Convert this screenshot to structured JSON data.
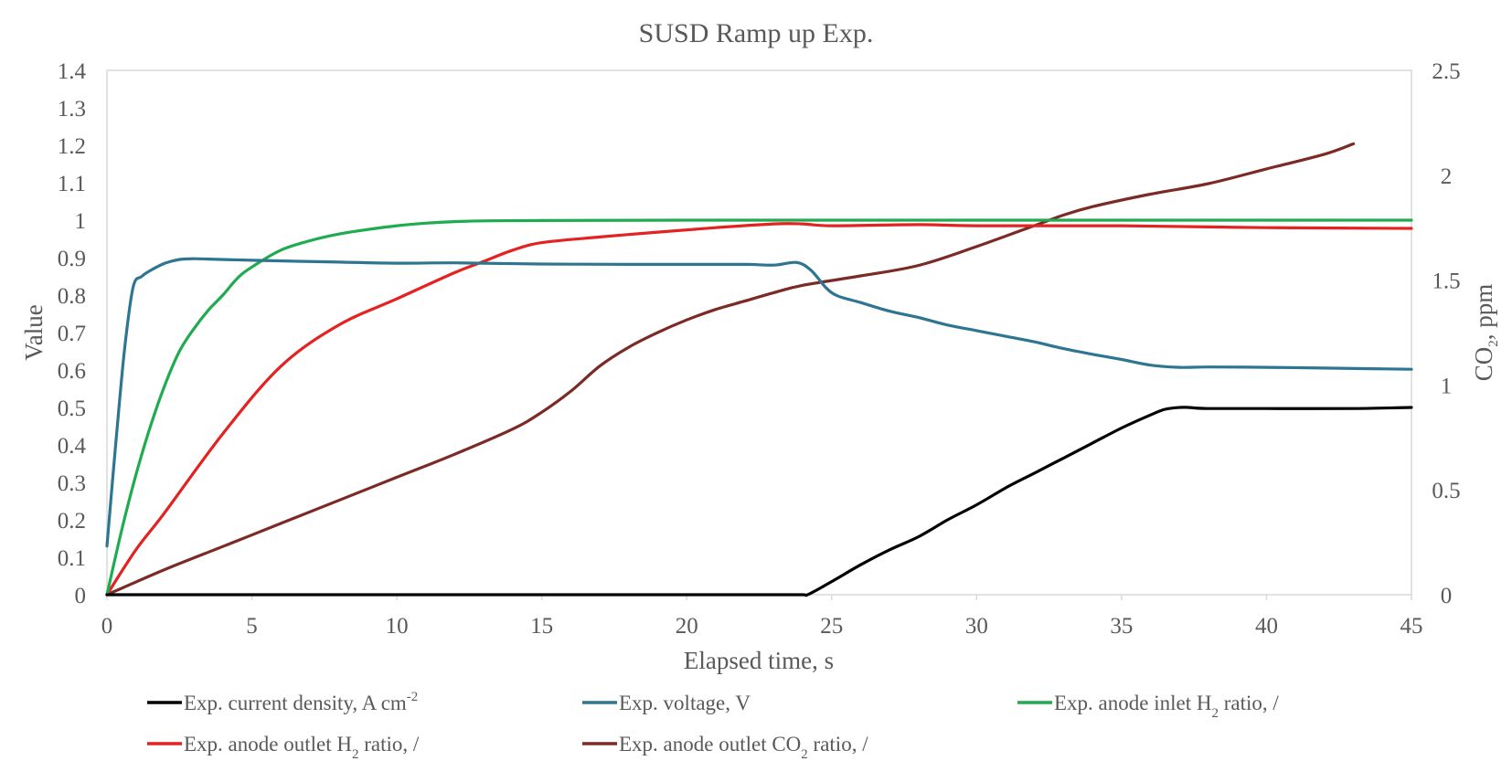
{
  "chart_data": {
    "type": "line",
    "title": "SUSD Ramp up Exp.",
    "xlabel": "Elapsed time, s",
    "ylabel": "Value",
    "y2label_main": "CO",
    "y2label_sub": "2",
    "y2label_rest": ", ppm",
    "xlim": [
      0,
      45
    ],
    "ylim": [
      0,
      1.4
    ],
    "y2lim": [
      0,
      2.5
    ],
    "x_ticks": [
      "0",
      "5",
      "10",
      "15",
      "20",
      "25",
      "30",
      "35",
      "40",
      "45"
    ],
    "y_ticks": [
      "0",
      "0.1",
      "0.2",
      "0.3",
      "0.4",
      "0.5",
      "0.6",
      "0.7",
      "0.8",
      "0.9",
      "1",
      "1.1",
      "1.2",
      "1.3",
      "1.4"
    ],
    "y2_ticks": [
      "0",
      "0.5",
      "1",
      "1.5",
      "2",
      "2.5"
    ],
    "grid": false,
    "legend_position": "bottom",
    "series": [
      {
        "name": "Exp. current density, A cm",
        "name_sup": "-2",
        "name_sub": "",
        "name_rest": "",
        "color": "#000000",
        "axis": "left",
        "x": [
          0,
          5,
          10,
          15,
          20,
          23,
          24,
          24.2,
          25,
          26,
          27,
          28,
          29,
          30,
          31,
          32,
          33,
          34,
          35,
          36,
          36.5,
          37,
          37.3,
          38,
          40,
          43,
          45
        ],
        "y": [
          0,
          0,
          0,
          0,
          0,
          0,
          0,
          0.001,
          0.035,
          0.08,
          0.12,
          0.155,
          0.2,
          0.24,
          0.285,
          0.325,
          0.365,
          0.405,
          0.445,
          0.48,
          0.495,
          0.5,
          0.5,
          0.497,
          0.497,
          0.497,
          0.5
        ]
      },
      {
        "name": "Exp. voltage, V",
        "name_sup": "",
        "name_sub": "",
        "name_rest": "",
        "color": "#2e7592",
        "axis": "left",
        "x": [
          0,
          0.3,
          0.6,
          0.9,
          1.2,
          1.6,
          2.0,
          2.5,
          3.0,
          3.5,
          5,
          8,
          10,
          12,
          15,
          18,
          20,
          22,
          23,
          23.8,
          24.3,
          24.8,
          25.2,
          26,
          27,
          28,
          29,
          30,
          31,
          32,
          33,
          34,
          35,
          36,
          37,
          38,
          40,
          42,
          45
        ],
        "y": [
          0.13,
          0.4,
          0.65,
          0.82,
          0.85,
          0.87,
          0.885,
          0.895,
          0.897,
          0.896,
          0.893,
          0.888,
          0.885,
          0.886,
          0.883,
          0.882,
          0.882,
          0.882,
          0.88,
          0.887,
          0.865,
          0.82,
          0.798,
          0.78,
          0.757,
          0.74,
          0.72,
          0.705,
          0.69,
          0.675,
          0.657,
          0.642,
          0.628,
          0.613,
          0.607,
          0.608,
          0.607,
          0.605,
          0.602
        ]
      },
      {
        "name": "Exp. anode inlet H",
        "name_sup": "",
        "name_sub": "2",
        "name_rest": " ratio, /",
        "color": "#1fab4f",
        "axis": "left",
        "x": [
          0,
          0.5,
          1,
          1.5,
          2,
          2.5,
          3,
          3.5,
          4,
          4.5,
          5,
          6,
          7,
          8,
          9,
          10,
          11,
          12,
          13,
          15,
          20,
          25,
          30,
          35,
          40,
          45
        ],
        "y": [
          0,
          0.17,
          0.32,
          0.45,
          0.56,
          0.65,
          0.71,
          0.76,
          0.8,
          0.845,
          0.875,
          0.92,
          0.945,
          0.963,
          0.975,
          0.985,
          0.992,
          0.996,
          0.998,
          0.999,
          1.0,
          1.0,
          1.0,
          1.0,
          1.0,
          1.0
        ]
      },
      {
        "name": "Exp. anode outlet H",
        "name_sup": "",
        "name_sub": "2",
        "name_rest": " ratio, /",
        "color": "#e32221",
        "axis": "left",
        "x": [
          0,
          1,
          2,
          4,
          6,
          8,
          10,
          12,
          13,
          14,
          15,
          17,
          19,
          21,
          23,
          24,
          25,
          28,
          30,
          35,
          38,
          40,
          45
        ],
        "y": [
          0,
          0.12,
          0.22,
          0.43,
          0.61,
          0.72,
          0.79,
          0.86,
          0.89,
          0.92,
          0.94,
          0.955,
          0.968,
          0.98,
          0.99,
          0.99,
          0.985,
          0.988,
          0.985,
          0.985,
          0.982,
          0.98,
          0.978
        ]
      },
      {
        "name": "Exp. anode outlet CO",
        "name_sup": "",
        "name_sub": "2",
        "name_rest": " ratio, /",
        "color": "#7b2a26",
        "axis": "right",
        "x": [
          0,
          2,
          4,
          6,
          8,
          10,
          12,
          14,
          15,
          16,
          17,
          18,
          19,
          20,
          21,
          22,
          23,
          24,
          26,
          28,
          30,
          32,
          33,
          34,
          36,
          38,
          40,
          42,
          43
        ],
        "y": [
          0,
          0.12,
          0.23,
          0.34,
          0.45,
          0.56,
          0.67,
          0.79,
          0.87,
          0.97,
          1.09,
          1.18,
          1.25,
          1.31,
          1.36,
          1.4,
          1.44,
          1.475,
          1.52,
          1.57,
          1.66,
          1.76,
          1.81,
          1.85,
          1.91,
          1.96,
          2.03,
          2.1,
          2.15
        ]
      }
    ]
  }
}
